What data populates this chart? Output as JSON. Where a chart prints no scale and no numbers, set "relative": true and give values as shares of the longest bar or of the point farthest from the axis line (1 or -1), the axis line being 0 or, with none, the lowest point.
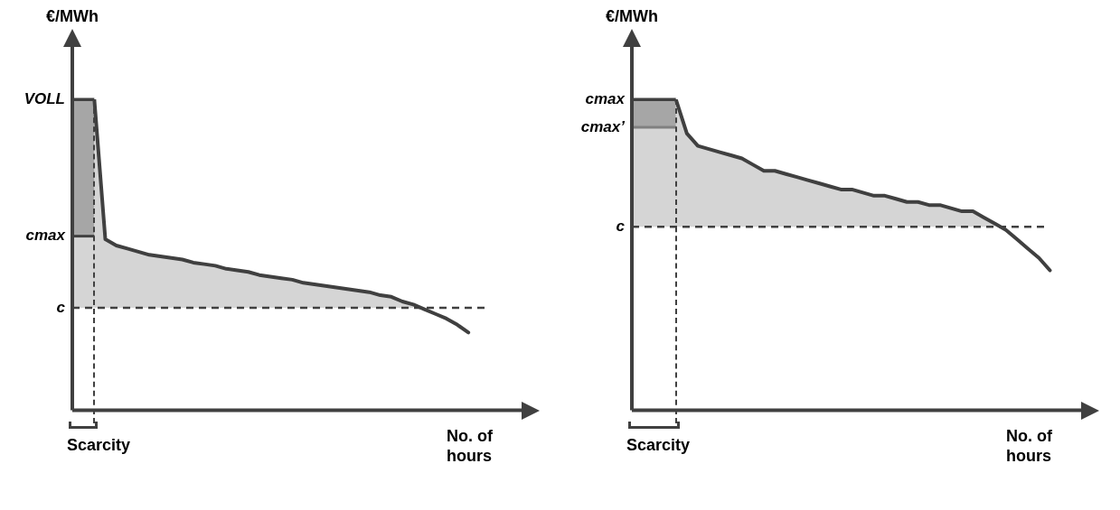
{
  "chart_data": [
    {
      "type": "line",
      "relative": true,
      "ylabel": "€/MWh",
      "xlabel": "No. of hours",
      "annotations": [
        "Scarcity"
      ],
      "grid": false,
      "legend": false,
      "marker": "none",
      "categories": [
        null,
        null,
        null,
        null,
        null,
        null,
        null,
        null,
        null,
        null,
        null,
        null,
        null,
        null,
        null,
        null,
        null,
        null,
        null,
        null,
        null,
        null,
        null,
        null,
        null,
        null,
        null,
        null,
        null,
        null,
        null,
        null,
        null,
        null,
        null,
        null,
        null,
        null,
        null,
        null,
        null,
        null
      ],
      "series": [
        {
          "color": "#404040",
          "values": [
            1,
            1,
            1,
            0.55,
            0.53,
            0.52,
            0.51,
            0.5,
            0.495,
            0.49,
            0.485,
            0.475,
            0.47,
            0.465,
            0.455,
            0.45,
            0.445,
            0.435,
            0.43,
            0.425,
            0.42,
            0.41,
            0.405,
            0.4,
            0.395,
            0.39,
            0.385,
            0.38,
            0.37,
            0.365,
            0.35,
            0.34,
            0.325,
            0.31,
            0.295,
            0.275,
            0.25,
            null,
            null,
            null,
            null,
            null
          ],
          "upper": [
            1,
            1,
            1,
            0.55,
            0.53,
            0.52,
            0.51,
            0.5,
            0.495,
            0.49,
            0.485,
            0.475,
            0.47,
            0.465,
            0.455,
            0.45,
            0.445,
            0.435,
            0.43,
            0.425,
            0.42,
            0.41,
            0.405,
            0.4,
            0.395,
            0.39,
            0.385,
            0.38,
            0.37,
            0.365,
            0.35,
            0.34,
            null,
            null,
            null,
            null,
            null,
            null,
            null,
            null,
            null,
            null
          ],
          "lower": [
            0.33,
            0.33,
            0.33,
            0.33,
            0.33,
            0.33,
            0.33,
            0.33,
            0.33,
            0.33,
            0.33,
            0.33,
            0.33,
            0.33,
            0.33,
            0.33,
            0.33,
            0.33,
            0.33,
            0.33,
            0.33,
            0.33,
            0.33,
            0.33,
            0.33,
            0.33,
            0.33,
            0.33,
            0.33,
            0.33,
            0.33,
            0.33,
            null,
            null,
            null,
            null,
            null,
            null,
            null,
            null,
            null,
            null
          ]
        },
        {
          "color": "#808080",
          "values": [
            null,
            null,
            null,
            null,
            null,
            null,
            null,
            null,
            null,
            null,
            null,
            null,
            null,
            null,
            null,
            null,
            null,
            null,
            null,
            null,
            null,
            null,
            null,
            null,
            null,
            null,
            null,
            null,
            null,
            null,
            null,
            null,
            null,
            null,
            null,
            null,
            null,
            null,
            null,
            null,
            null,
            null
          ],
          "upper": [
            1,
            1,
            1,
            null,
            null,
            null,
            null,
            null,
            null,
            null,
            null,
            null,
            null,
            null,
            null,
            null,
            null,
            null,
            null,
            null,
            null,
            null,
            null,
            null,
            null,
            null,
            null,
            null,
            null,
            null,
            null,
            null,
            null,
            null,
            null,
            null,
            null,
            null,
            null,
            null,
            null,
            null
          ],
          "lower": [
            0.56,
            0.56,
            0.56,
            null,
            null,
            null,
            null,
            null,
            null,
            null,
            null,
            null,
            null,
            null,
            null,
            null,
            null,
            null,
            null,
            null,
            null,
            null,
            null,
            null,
            null,
            null,
            null,
            null,
            null,
            null,
            null,
            null,
            null,
            null,
            null,
            null,
            null,
            null,
            null,
            null,
            null,
            null
          ]
        }
      ],
      "ref_lines": [
        {
          "axis": "y",
          "value": 1,
          "label": "VOLL",
          "line_style": "solid",
          "color": "#404040"
        },
        {
          "axis": "y",
          "value": 0.56,
          "label": "cmax",
          "line_style": "solid",
          "color": "#404040"
        },
        {
          "axis": "y",
          "value": 0.33,
          "label": "c",
          "line_style": "dashed",
          "color": "#404040"
        }
      ]
    },
    {
      "type": "line",
      "relative": true,
      "ylabel": "€/MWh",
      "xlabel": "No. of hours",
      "annotations": [
        "Scarcity"
      ],
      "grid": false,
      "legend": false,
      "marker": "none",
      "categories": [
        null,
        null,
        null,
        null,
        null,
        null,
        null,
        null,
        null,
        null,
        null,
        null,
        null,
        null,
        null,
        null,
        null,
        null,
        null,
        null,
        null,
        null,
        null,
        null,
        null,
        null,
        null,
        null,
        null,
        null,
        null,
        null,
        null,
        null,
        null,
        null,
        null,
        null,
        null,
        null,
        null,
        null
      ],
      "series": [
        {
          "color": "#404040",
          "values": [
            1,
            1,
            1,
            1,
            1,
            0.89,
            0.85,
            0.84,
            0.83,
            0.82,
            0.81,
            0.79,
            0.77,
            0.77,
            0.76,
            0.75,
            0.74,
            0.73,
            0.72,
            0.71,
            0.71,
            0.7,
            0.69,
            0.69,
            0.68,
            0.67,
            0.67,
            0.66,
            0.66,
            0.65,
            0.64,
            0.64,
            0.62,
            0.6,
            0.58,
            0.55,
            0.52,
            0.49,
            0.45,
            null,
            null,
            null
          ],
          "upper": [
            1,
            1,
            1,
            1,
            1,
            0.89,
            0.85,
            0.84,
            0.83,
            0.82,
            0.81,
            0.79,
            0.77,
            0.77,
            0.76,
            0.75,
            0.74,
            0.73,
            0.72,
            0.71,
            0.71,
            0.7,
            0.69,
            0.69,
            0.68,
            0.67,
            0.67,
            0.66,
            0.66,
            0.65,
            0.64,
            0.64,
            0.62,
            0.6,
            null,
            null,
            null,
            null,
            null,
            null,
            null,
            null
          ],
          "lower": [
            0.59,
            0.59,
            0.59,
            0.59,
            0.59,
            0.59,
            0.59,
            0.59,
            0.59,
            0.59,
            0.59,
            0.59,
            0.59,
            0.59,
            0.59,
            0.59,
            0.59,
            0.59,
            0.59,
            0.59,
            0.59,
            0.59,
            0.59,
            0.59,
            0.59,
            0.59,
            0.59,
            0.59,
            0.59,
            0.59,
            0.59,
            0.59,
            0.59,
            0.59,
            null,
            null,
            null,
            null,
            null,
            null,
            null,
            null
          ]
        },
        {
          "color": "#808080",
          "values": [
            null,
            null,
            null,
            null,
            null,
            null,
            null,
            null,
            null,
            null,
            null,
            null,
            null,
            null,
            null,
            null,
            null,
            null,
            null,
            null,
            null,
            null,
            null,
            null,
            null,
            null,
            null,
            null,
            null,
            null,
            null,
            null,
            null,
            null,
            null,
            null,
            null,
            null,
            null,
            null,
            null,
            null
          ],
          "upper": [
            1,
            1,
            1,
            1,
            1,
            null,
            null,
            null,
            null,
            null,
            null,
            null,
            null,
            null,
            null,
            null,
            null,
            null,
            null,
            null,
            null,
            null,
            null,
            null,
            null,
            null,
            null,
            null,
            null,
            null,
            null,
            null,
            null,
            null,
            null,
            null,
            null,
            null,
            null,
            null,
            null,
            null
          ],
          "lower": [
            0.91,
            0.91,
            0.91,
            0.91,
            0.91,
            null,
            null,
            null,
            null,
            null,
            null,
            null,
            null,
            null,
            null,
            null,
            null,
            null,
            null,
            null,
            null,
            null,
            null,
            null,
            null,
            null,
            null,
            null,
            null,
            null,
            null,
            null,
            null,
            null,
            null,
            null,
            null,
            null,
            null,
            null,
            null,
            null
          ]
        }
      ],
      "ref_lines": [
        {
          "axis": "y",
          "value": 1,
          "label": "cmax",
          "line_style": "solid",
          "color": "#404040"
        },
        {
          "axis": "y",
          "value": 0.91,
          "label": "cmax’",
          "line_style": "solid",
          "color": "#808080"
        },
        {
          "axis": "y",
          "value": 0.59,
          "label": "c",
          "line_style": "dashed",
          "color": "#404040"
        }
      ]
    }
  ]
}
